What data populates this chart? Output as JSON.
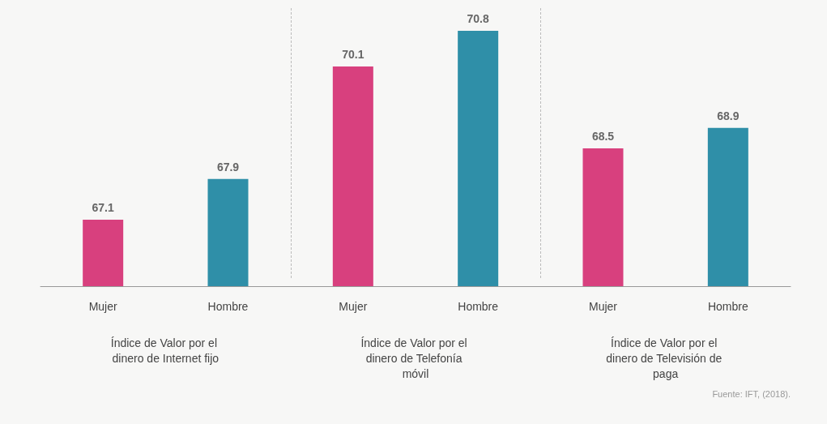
{
  "chart_data": {
    "type": "bar",
    "categories": [
      "Mujer",
      "Hombre",
      "Mujer",
      "Hombre",
      "Mujer",
      "Hombre"
    ],
    "values": [
      67.1,
      67.9,
      70.1,
      70.8,
      68.5,
      68.9
    ],
    "colors": [
      "#d8407e",
      "#2f8fa8",
      "#d8407e",
      "#2f8fa8",
      "#d8407e",
      "#2f8fa8"
    ],
    "ylim": [
      65.8,
      70.8
    ],
    "tick_labels": "x",
    "data_labels": true,
    "annotations": [
      "Índice de Valor por el dinero de Internet fijo",
      "Índice de Valor por el dinero de Telefonía móvil",
      "Índice de Valor por el dinero de Televisión de paga",
      "Fuente: IFT, (2018)."
    ]
  }
}
